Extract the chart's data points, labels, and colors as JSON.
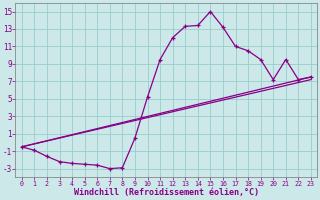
{
  "background_color": "#cce8e8",
  "line_color": "#880088",
  "grid_color": "#99cccc",
  "yticks": [
    -3,
    -1,
    1,
    3,
    5,
    7,
    9,
    11,
    13,
    15
  ],
  "xticks": [
    0,
    1,
    2,
    3,
    4,
    5,
    6,
    7,
    8,
    9,
    10,
    11,
    12,
    13,
    14,
    15,
    16,
    17,
    18,
    19,
    20,
    21,
    22,
    23
  ],
  "xlabel": "Windchill (Refroidissement éolien,°C)",
  "xlabel_fontsize": 6.0,
  "series1_x": [
    0,
    1,
    2,
    3,
    4,
    5,
    6,
    7,
    8,
    9,
    10,
    11,
    12,
    13,
    14,
    15,
    16,
    17,
    18,
    19,
    20,
    21,
    22,
    23
  ],
  "series1_y": [
    -0.5,
    -0.9,
    -1.6,
    -2.2,
    -2.4,
    -2.5,
    -2.6,
    -3.0,
    -2.9,
    0.5,
    5.2,
    9.5,
    12.0,
    13.3,
    13.4,
    15.0,
    13.2,
    11.0,
    10.5,
    9.5,
    7.2,
    9.5,
    7.2,
    7.5
  ],
  "series2_x": [
    0,
    23
  ],
  "series2_y": [
    -0.5,
    7.5
  ],
  "series3_x": [
    0,
    23
  ],
  "series3_y": [
    -0.5,
    7.2
  ],
  "xlim": [
    -0.5,
    23.5
  ],
  "ylim": [
    -4.0,
    16.0
  ]
}
